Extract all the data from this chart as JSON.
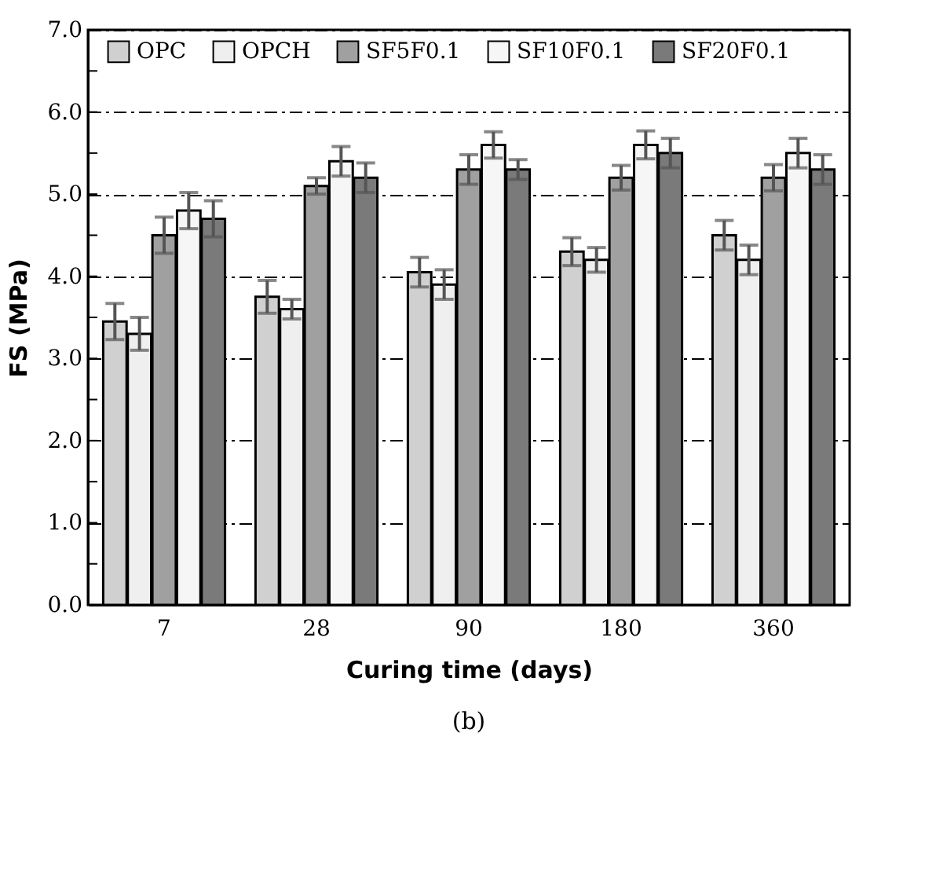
{
  "chart_data": {
    "type": "bar",
    "xlabel": "Curing time (days)",
    "ylabel": "FS (MPa)",
    "categories": [
      "7",
      "28",
      "90",
      "180",
      "360"
    ],
    "series": [
      {
        "name": "OPC",
        "color": "#d0d0d0",
        "values": [
          3.45,
          3.75,
          4.05,
          4.3,
          4.5
        ],
        "errors": [
          0.22,
          0.2,
          0.18,
          0.17,
          0.18
        ]
      },
      {
        "name": "OPCH",
        "color": "#efefef",
        "values": [
          3.3,
          3.6,
          3.9,
          4.2,
          4.2
        ],
        "errors": [
          0.2,
          0.12,
          0.18,
          0.15,
          0.18
        ]
      },
      {
        "name": "SF5F0.1",
        "color": "#a0a0a0",
        "values": [
          4.5,
          5.1,
          5.3,
          5.2,
          5.2
        ],
        "errors": [
          0.22,
          0.1,
          0.18,
          0.15,
          0.16
        ]
      },
      {
        "name": "SF10F0.1",
        "color": "#f6f6f6",
        "values": [
          4.8,
          5.4,
          5.6,
          5.6,
          5.5
        ],
        "errors": [
          0.22,
          0.18,
          0.16,
          0.17,
          0.18
        ]
      },
      {
        "name": "SF20F0.1",
        "color": "#7a7a7a",
        "values": [
          4.7,
          5.2,
          5.3,
          5.5,
          5.3
        ],
        "errors": [
          0.22,
          0.18,
          0.12,
          0.18,
          0.18
        ]
      }
    ],
    "ylim": [
      0,
      7
    ],
    "yticks": [
      {
        "value": 0,
        "label": "0.0"
      },
      {
        "value": 0.5,
        "label": null
      },
      {
        "value": 1,
        "label": "1.0"
      },
      {
        "value": 1.5,
        "label": null
      },
      {
        "value": 2,
        "label": "2.0"
      },
      {
        "value": 2.5,
        "label": null
      },
      {
        "value": 3,
        "label": "3.0"
      },
      {
        "value": 3.5,
        "label": null
      },
      {
        "value": 4,
        "label": "4.0"
      },
      {
        "value": 4.5,
        "label": null
      },
      {
        "value": 5,
        "label": "5.0"
      },
      {
        "value": 5.5,
        "label": null
      },
      {
        "value": 6,
        "label": "6.0"
      },
      {
        "value": 6.5,
        "label": null
      },
      {
        "value": 7,
        "label": "7.0"
      }
    ],
    "grid": "y",
    "legend": "top",
    "annotations": [
      "(b)"
    ]
  }
}
